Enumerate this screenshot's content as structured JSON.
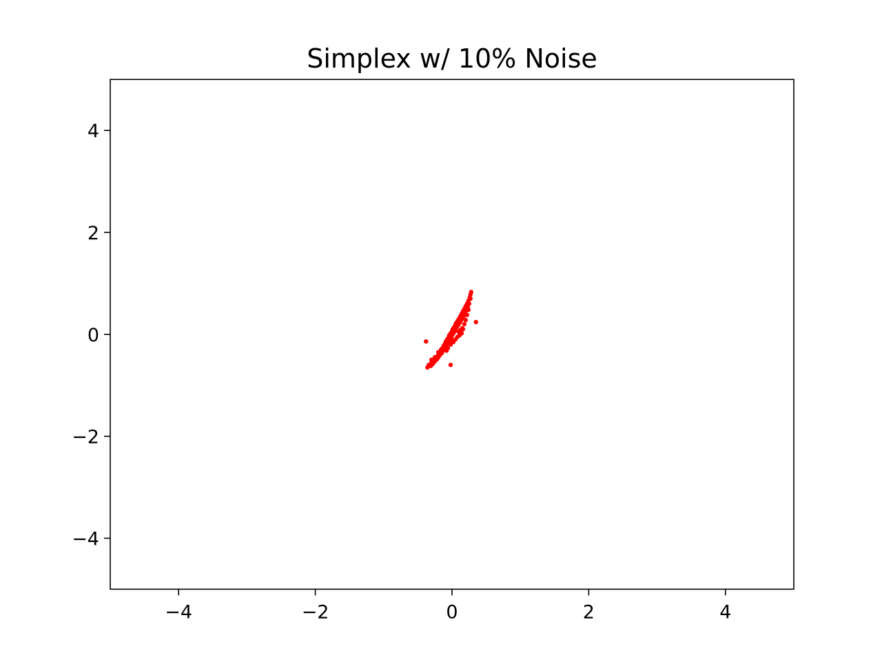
{
  "chart_data": {
    "type": "scatter",
    "title": "Simplex w/ 10% Noise",
    "xlabel": "",
    "ylabel": "",
    "xlim": [
      -5,
      5
    ],
    "ylim": [
      -5,
      5
    ],
    "grid": false,
    "legend": "none",
    "x_ticks": [
      -4,
      -2,
      0,
      2,
      4
    ],
    "y_ticks": [
      -4,
      -2,
      0,
      2,
      4
    ],
    "x_tick_labels": [
      "−4",
      "−2",
      "0",
      "2",
      "4"
    ],
    "y_tick_labels": [
      "−4",
      "−2",
      "0",
      "2",
      "4"
    ],
    "series": [
      {
        "color": "#ff0000",
        "marker": "dot",
        "points": [
          [
            -0.36,
            -0.65
          ],
          [
            -0.34,
            -0.6
          ],
          [
            -0.31,
            -0.62
          ],
          [
            -0.3,
            -0.55
          ],
          [
            -0.28,
            -0.58
          ],
          [
            -0.27,
            -0.5
          ],
          [
            -0.25,
            -0.53
          ],
          [
            -0.24,
            -0.46
          ],
          [
            -0.22,
            -0.49
          ],
          [
            -0.21,
            -0.42
          ],
          [
            -0.2,
            -0.45
          ],
          [
            -0.19,
            -0.38
          ],
          [
            -0.18,
            -0.41
          ],
          [
            -0.17,
            -0.35
          ],
          [
            -0.16,
            -0.3
          ],
          [
            -0.15,
            -0.37
          ],
          [
            -0.14,
            -0.27
          ],
          [
            -0.13,
            -0.32
          ],
          [
            -0.12,
            -0.22
          ],
          [
            -0.11,
            -0.28
          ],
          [
            -0.1,
            -0.18
          ],
          [
            -0.1,
            -0.25
          ],
          [
            -0.09,
            -0.14
          ],
          [
            -0.08,
            -0.2
          ],
          [
            -0.07,
            -0.1
          ],
          [
            -0.06,
            -0.16
          ],
          [
            -0.05,
            -0.06
          ],
          [
            -0.05,
            -0.13
          ],
          [
            -0.04,
            -0.02
          ],
          [
            -0.03,
            -0.09
          ],
          [
            -0.02,
            0.02
          ],
          [
            -0.01,
            -0.05
          ],
          [
            0.0,
            0.06
          ],
          [
            0.0,
            -0.02
          ],
          [
            0.01,
            0.1
          ],
          [
            0.02,
            0.02
          ],
          [
            0.03,
            0.14
          ],
          [
            0.04,
            0.06
          ],
          [
            0.05,
            0.18
          ],
          [
            0.05,
            0.1
          ],
          [
            0.06,
            0.22
          ],
          [
            0.07,
            0.14
          ],
          [
            0.08,
            0.26
          ],
          [
            0.09,
            0.18
          ],
          [
            0.1,
            0.3
          ],
          [
            0.11,
            0.22
          ],
          [
            0.12,
            0.35
          ],
          [
            0.13,
            0.27
          ],
          [
            0.14,
            0.4
          ],
          [
            0.15,
            0.31
          ],
          [
            0.16,
            0.45
          ],
          [
            0.17,
            0.36
          ],
          [
            0.18,
            0.5
          ],
          [
            0.19,
            0.41
          ],
          [
            0.2,
            0.55
          ],
          [
            0.21,
            0.47
          ],
          [
            0.22,
            0.6
          ],
          [
            0.23,
            0.53
          ],
          [
            0.24,
            0.66
          ],
          [
            0.25,
            0.6
          ],
          [
            0.26,
            0.72
          ],
          [
            0.27,
            0.78
          ],
          [
            0.28,
            0.83
          ],
          [
            0.27,
            0.7
          ],
          [
            0.1,
            0.05
          ],
          [
            0.12,
            0.08
          ],
          [
            0.15,
            0.12
          ],
          [
            0.14,
            0.02
          ],
          [
            0.08,
            -0.05
          ],
          [
            0.05,
            -0.1
          ],
          [
            0.02,
            -0.15
          ],
          [
            -0.02,
            -0.2
          ],
          [
            -0.06,
            -0.27
          ],
          [
            0.0,
            -0.12
          ],
          [
            -0.25,
            -0.45
          ],
          [
            -0.3,
            -0.5
          ],
          [
            -0.2,
            -0.35
          ],
          [
            0.18,
            0.2
          ],
          [
            0.2,
            0.28
          ],
          [
            0.16,
            0.1
          ],
          [
            0.22,
            0.38
          ],
          [
            0.24,
            0.48
          ],
          [
            0.11,
            -0.02
          ],
          [
            -0.08,
            -0.32
          ],
          [
            -0.38,
            -0.14
          ],
          [
            0.35,
            0.24
          ],
          [
            -0.02,
            -0.6
          ]
        ]
      }
    ]
  }
}
